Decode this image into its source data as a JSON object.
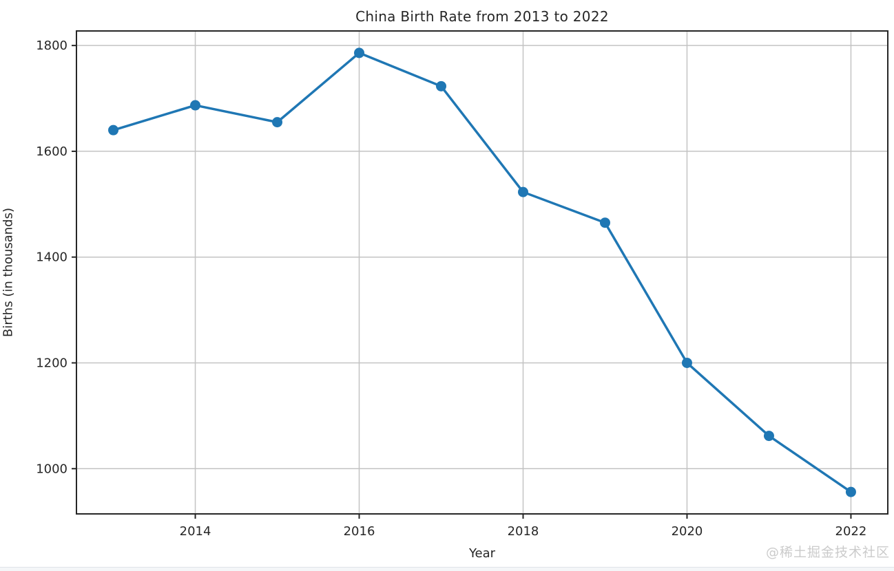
{
  "page": {
    "background": "#ffffff",
    "watermark": "@稀土掘金技术社区"
  },
  "chart_data": {
    "type": "line",
    "title": "China Birth Rate from 2013 to 2022",
    "xlabel": "Year",
    "ylabel": "Births (in thousands)",
    "x": [
      2013,
      2014,
      2015,
      2016,
      2017,
      2018,
      2019,
      2020,
      2021,
      2022
    ],
    "series": [
      {
        "name": "Births",
        "values": [
          1640,
          1687,
          1655,
          1786,
          1723,
          1523,
          1465,
          1200,
          1062,
          956
        ]
      }
    ],
    "xticks": [
      2014,
      2016,
      2018,
      2020,
      2022
    ],
    "yticks": [
      1000,
      1200,
      1400,
      1600,
      1800
    ],
    "xlim": [
      2012.55,
      2022.45
    ],
    "ylim": [
      914.5,
      1827.5
    ],
    "grid": true,
    "legend": "none",
    "marker": "circle",
    "colors": {
      "line": "#1f77b4",
      "marker": "#1f77b4",
      "grid": "#c3c3c3",
      "spine": "#262626",
      "tick_text": "#262626",
      "watermark": "#cbcbcb"
    }
  }
}
